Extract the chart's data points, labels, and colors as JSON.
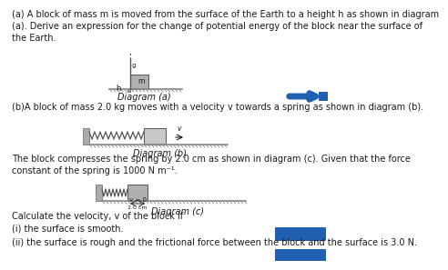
{
  "background_color": "#ffffff",
  "text_color": "#1a1a1a",
  "font_size_body": 7.0,
  "para1": "(a) A block of mass m is moved from the surface of the Earth to a height h as shown in diagram\n(a). Derive an expression for the change of potential energy of the block near the surface of\nthe Earth.",
  "diagram_a_label": "Diagram (a)",
  "para2": "(b)A block of mass 2.0 kg moves with a velocity v towards a spring as shown in diagram (b).",
  "diagram_b_label": "Diagram (b)",
  "para3": "The block compresses the spring by 2.0 cm as shown in diagram (c). Given that the force\nconstant of the spring is 1000 N m⁻¹.",
  "diagram_c_label": "Diagram (c)",
  "para4": "Calculate the velocity, v of the block if\n(i) the surface is smooth.",
  "para5": "(ii) the surface is rough and the frictional force between the block and the surface is 3.0 N.",
  "blue_color": "#2060b0",
  "ground_color": "#888888",
  "hatch_color": "#888888",
  "block_color": "#b0b0b0",
  "spring_color": "#555555",
  "wall_color": "#aaaaaa",
  "pole_color": "#555555",
  "line_color": "#333333"
}
